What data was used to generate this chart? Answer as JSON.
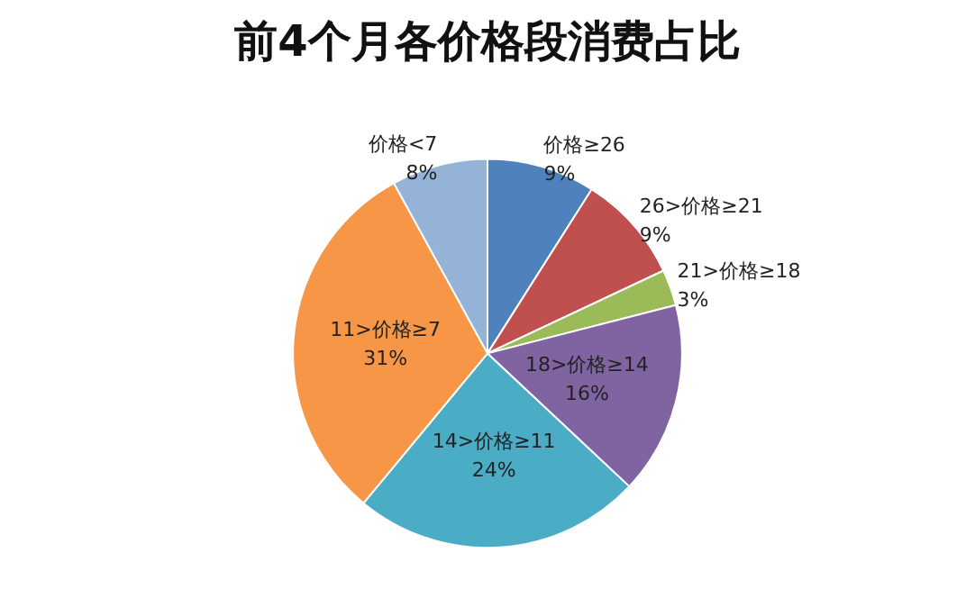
{
  "chart_data": {
    "type": "pie",
    "title": "前4个月各价格段消费占比",
    "categories": [
      "价格≥26",
      "26>价格≥21",
      "21>价格≥18",
      "18>价格≥14",
      "14>价格≥11",
      "11>价格≥7",
      "价格<7"
    ],
    "values": [
      9,
      9,
      3,
      16,
      24,
      31,
      8
    ],
    "value_labels": [
      "9%",
      "9%",
      "3%",
      "16%",
      "24%",
      "31%",
      "8%"
    ],
    "colors": [
      "#4f81bd",
      "#c0504d",
      "#9bbb59",
      "#8064a2",
      "#4bacc6",
      "#f79646",
      "#95b3d7"
    ],
    "legend": false
  }
}
